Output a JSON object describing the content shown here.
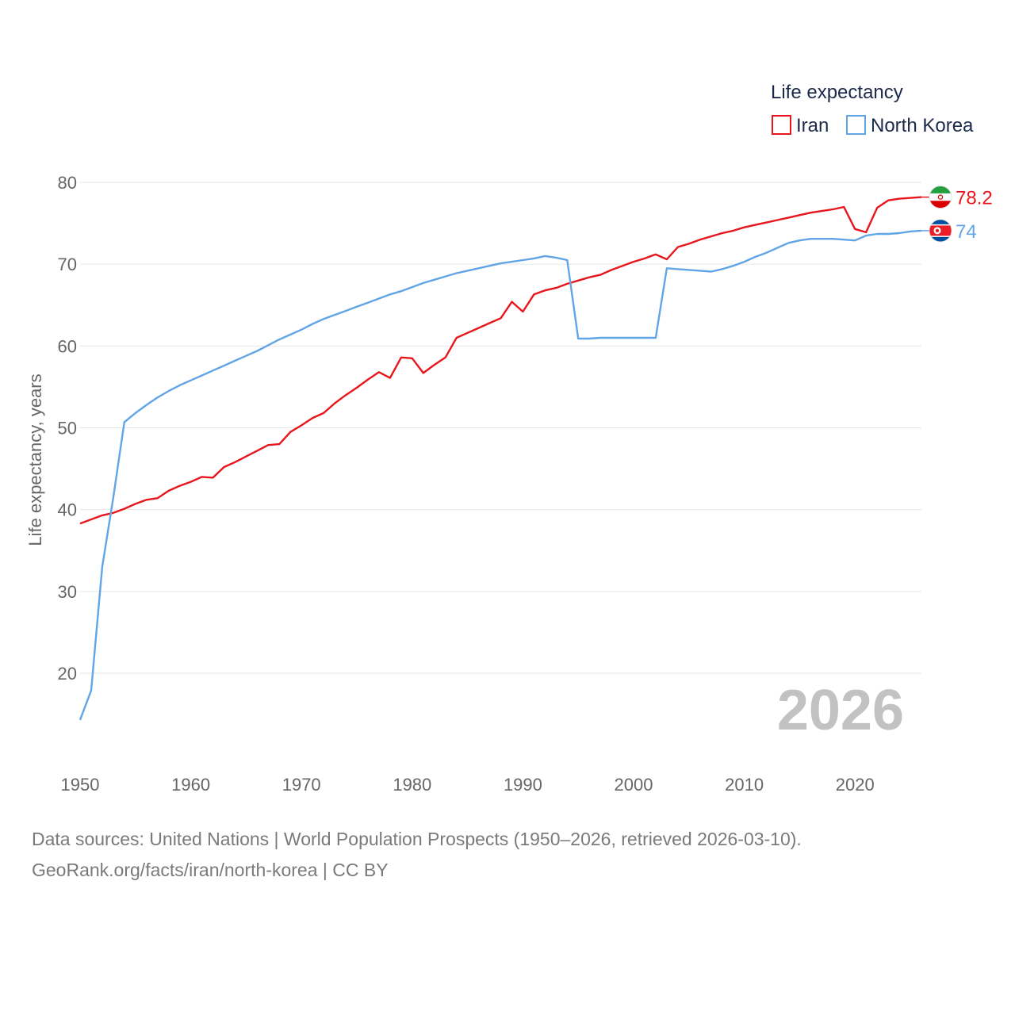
{
  "chart_data": {
    "type": "line",
    "title": "",
    "xlabel": "",
    "ylabel": "Life expectancy, years",
    "legend_title": "Life expectancy",
    "legend_position": "top-right",
    "xlim": [
      1950,
      2026
    ],
    "ylim": [
      10,
      85
    ],
    "x_ticks": [
      1950,
      1960,
      1970,
      1980,
      1990,
      2000,
      2010,
      2020
    ],
    "y_ticks": [
      20,
      30,
      40,
      50,
      60,
      70,
      80
    ],
    "current_year": "2026",
    "series": [
      {
        "name": "Iran",
        "color": "#e8161c",
        "flag": "iran-flag-icon",
        "end_label": "78.2",
        "x": [
          1950,
          1951,
          1952,
          1953,
          1954,
          1955,
          1956,
          1957,
          1958,
          1959,
          1960,
          1961,
          1962,
          1963,
          1964,
          1965,
          1966,
          1967,
          1968,
          1969,
          1970,
          1971,
          1972,
          1973,
          1974,
          1975,
          1976,
          1977,
          1978,
          1979,
          1980,
          1981,
          1982,
          1983,
          1984,
          1985,
          1986,
          1987,
          1988,
          1989,
          1990,
          1991,
          1992,
          1993,
          1994,
          1995,
          1996,
          1997,
          1998,
          1999,
          2000,
          2001,
          2002,
          2003,
          2004,
          2005,
          2006,
          2007,
          2008,
          2009,
          2010,
          2011,
          2012,
          2013,
          2014,
          2015,
          2016,
          2017,
          2018,
          2019,
          2020,
          2021,
          2022,
          2023,
          2024,
          2025,
          2026
        ],
        "y": [
          38.3,
          38.8,
          39.3,
          39.6,
          40.1,
          40.7,
          41.2,
          41.4,
          42.3,
          42.9,
          43.4,
          44.0,
          43.9,
          45.2,
          45.8,
          46.5,
          47.2,
          47.9,
          48.0,
          49.5,
          50.3,
          51.2,
          51.8,
          53.0,
          54.0,
          54.9,
          55.9,
          56.8,
          56.1,
          58.6,
          58.5,
          56.7,
          57.7,
          58.6,
          61.0,
          61.6,
          62.2,
          62.8,
          63.4,
          65.4,
          64.2,
          66.3,
          66.8,
          67.1,
          67.6,
          68.0,
          68.4,
          68.7,
          69.3,
          69.8,
          70.3,
          70.7,
          71.2,
          70.6,
          72.1,
          72.5,
          73.0,
          73.4,
          73.8,
          74.1,
          74.5,
          74.8,
          75.1,
          75.4,
          75.7,
          76.0,
          76.3,
          76.5,
          76.7,
          77.0,
          74.3,
          73.9,
          76.9,
          77.8,
          78.0,
          78.1,
          78.2
        ]
      },
      {
        "name": "North Korea",
        "color": "#61a5e6",
        "flag": "north-korea-flag-icon",
        "end_label": "74",
        "x": [
          1950,
          1951,
          1952,
          1953,
          1954,
          1955,
          1956,
          1957,
          1958,
          1959,
          1960,
          1961,
          1962,
          1963,
          1964,
          1965,
          1966,
          1967,
          1968,
          1969,
          1970,
          1971,
          1972,
          1973,
          1974,
          1975,
          1976,
          1977,
          1978,
          1979,
          1980,
          1981,
          1982,
          1983,
          1984,
          1985,
          1986,
          1987,
          1988,
          1989,
          1990,
          1991,
          1992,
          1993,
          1994,
          1995,
          1996,
          1997,
          1998,
          1999,
          2000,
          2001,
          2002,
          2003,
          2004,
          2005,
          2006,
          2007,
          2008,
          2009,
          2010,
          2011,
          2012,
          2013,
          2014,
          2015,
          2016,
          2017,
          2018,
          2019,
          2020,
          2021,
          2022,
          2023,
          2024,
          2025,
          2026
        ],
        "y": [
          14.3,
          17.9,
          33.0,
          41.5,
          50.7,
          51.8,
          52.8,
          53.7,
          54.5,
          55.2,
          55.8,
          56.4,
          57.0,
          57.6,
          58.2,
          58.8,
          59.4,
          60.1,
          60.8,
          61.4,
          62.0,
          62.7,
          63.3,
          63.8,
          64.3,
          64.8,
          65.3,
          65.8,
          66.3,
          66.7,
          67.2,
          67.7,
          68.1,
          68.5,
          68.9,
          69.2,
          69.5,
          69.8,
          70.1,
          70.3,
          70.5,
          70.7,
          71.0,
          70.8,
          70.5,
          60.9,
          60.9,
          61.0,
          61.0,
          61.0,
          61.0,
          61.0,
          61.0,
          69.5,
          69.4,
          69.3,
          69.2,
          69.1,
          69.4,
          69.8,
          70.3,
          70.9,
          71.4,
          72.0,
          72.6,
          72.9,
          73.1,
          73.1,
          73.1,
          73.0,
          72.9,
          73.5,
          73.7,
          73.7,
          73.8,
          74.0,
          74.1
        ]
      }
    ]
  },
  "footer": {
    "line1": "Data sources: United Nations | World Population Prospects (1950–2026, retrieved 2026-03-10).",
    "line2": "GeoRank.org/facts/iran/north-korea | CC BY"
  }
}
